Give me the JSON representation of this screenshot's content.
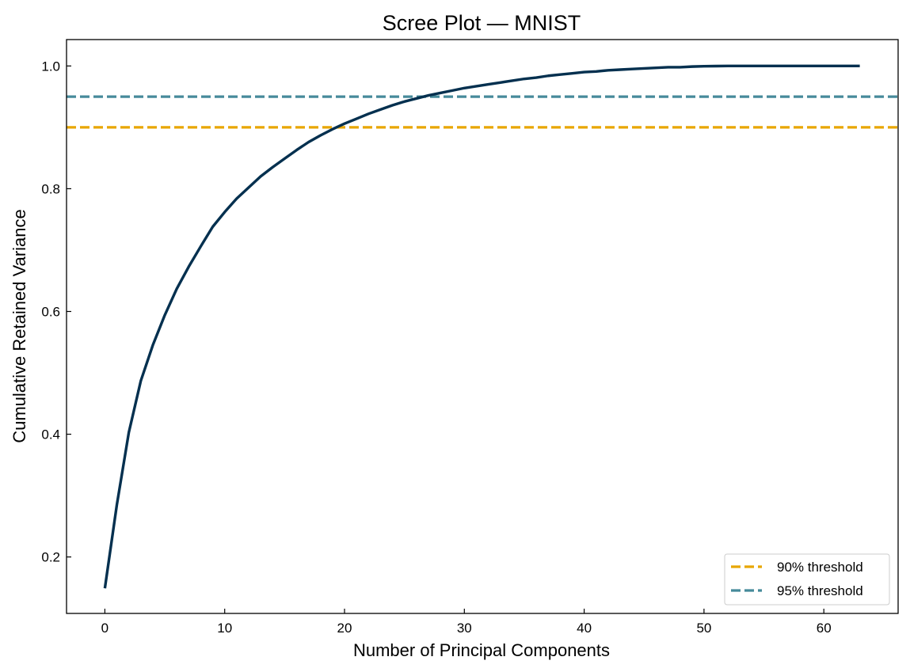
{
  "chart_data": {
    "type": "line",
    "title": "Scree Plot — MNIST",
    "xlabel": "Number of Principal Components",
    "ylabel": "Cumulative Retained Variance",
    "xlim": [
      -3.2,
      66.2
    ],
    "ylim": [
      0.108,
      1.043
    ],
    "xticks": [
      0,
      10,
      20,
      30,
      40,
      50,
      60
    ],
    "yticks": [
      0.2,
      0.4,
      0.6,
      0.8,
      1.0
    ],
    "xtick_labels": [
      "0",
      "10",
      "20",
      "30",
      "40",
      "50",
      "60"
    ],
    "ytick_labels": [
      "0.2",
      "0.4",
      "0.6",
      "0.8",
      "1.0"
    ],
    "grid": false,
    "legend_position": "lower-right",
    "series": [
      {
        "color": "#04304f",
        "x": [
          0,
          1,
          2,
          3,
          4,
          5,
          6,
          7,
          8,
          9,
          10,
          11,
          12,
          13,
          14,
          15,
          16,
          17,
          18,
          19,
          20,
          21,
          22,
          23,
          24,
          25,
          26,
          27,
          28,
          29,
          30,
          31,
          32,
          33,
          34,
          35,
          36,
          37,
          38,
          39,
          40,
          41,
          42,
          43,
          44,
          45,
          46,
          47,
          48,
          49,
          50,
          51,
          52,
          53,
          54,
          55,
          56,
          57,
          58,
          59,
          60,
          61,
          62,
          63
        ],
        "y": [
          0.149,
          0.285,
          0.403,
          0.487,
          0.545,
          0.594,
          0.637,
          0.673,
          0.706,
          0.738,
          0.762,
          0.784,
          0.802,
          0.82,
          0.835,
          0.849,
          0.863,
          0.876,
          0.887,
          0.897,
          0.906,
          0.914,
          0.922,
          0.929,
          0.936,
          0.942,
          0.947,
          0.952,
          0.956,
          0.96,
          0.964,
          0.967,
          0.97,
          0.973,
          0.976,
          0.979,
          0.981,
          0.984,
          0.986,
          0.988,
          0.99,
          0.991,
          0.993,
          0.994,
          0.995,
          0.996,
          0.997,
          0.998,
          0.998,
          0.999,
          0.9995,
          0.9998,
          1.0,
          1.0,
          1.0,
          1.0,
          1.0,
          1.0,
          1.0,
          1.0,
          1.0,
          1.0,
          1.0,
          1.0
        ]
      }
    ],
    "thresholds": [
      {
        "name": "90% threshold",
        "value": 0.9,
        "color": "#e8a600"
      },
      {
        "name": "95% threshold",
        "value": 0.95,
        "color": "#468a9a"
      }
    ]
  }
}
